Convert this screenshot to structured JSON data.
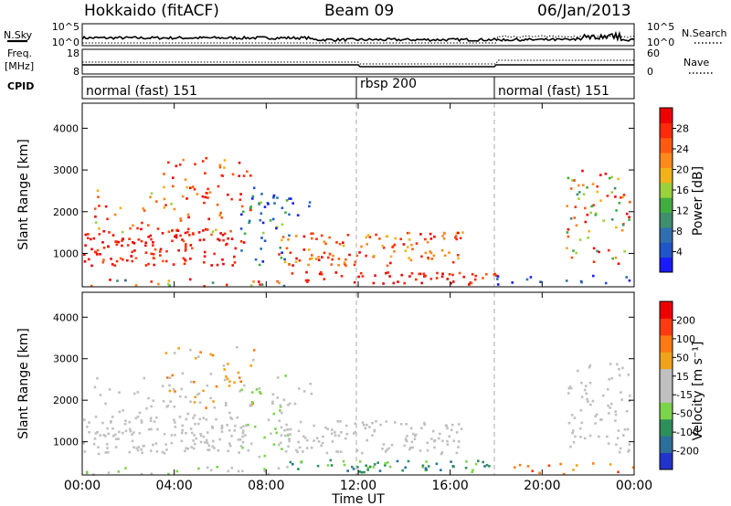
{
  "header": {
    "station": "Hokkaido (fitACF)",
    "beam": "Beam 09",
    "date": "06/Jan/2013"
  },
  "status_panels": {
    "nsky_label": "N.Sky",
    "nsky_ticks": [
      "10^5",
      "10^0"
    ],
    "nsearch_label": "N.Search",
    "nsearch_ticks": [
      "10^5",
      "10^0"
    ],
    "freq_label_line1": "Freq.",
    "freq_label_line2": "[MHz]",
    "freq_ticks": [
      "18",
      "8"
    ],
    "nave_label": "Nave",
    "nave_ticks": [
      "60",
      "0"
    ],
    "cpid_label": "CPID",
    "cpid_segments": [
      {
        "label": "normal (fast) 151",
        "start_h": 0,
        "end_h": 12
      },
      {
        "label": "rbsp 200",
        "start_h": 12,
        "end_h": 18
      },
      {
        "label": "normal (fast) 151",
        "start_h": 18,
        "end_h": 24
      }
    ]
  },
  "chart_data": [
    {
      "type": "heatmap",
      "name": "power",
      "ylabel": "Slant Range [km]",
      "yticks": [
        1000,
        2000,
        3000,
        4000
      ],
      "ylim": [
        200,
        4600
      ],
      "xlim": [
        0,
        24
      ],
      "colorbar": {
        "label": "Power [dB]",
        "ticks": [
          "4",
          "8",
          "12",
          "16",
          "20",
          "24",
          "28"
        ],
        "colors": [
          "#1a1aff",
          "#1f55c8",
          "#2f6fb0",
          "#3f8f6f",
          "#3fae3f",
          "#9ad23a",
          "#f2b21a",
          "#ff8a1a",
          "#ff5a10",
          "#ff2a0a",
          "#ee0000"
        ]
      }
    },
    {
      "type": "heatmap",
      "name": "velocity",
      "ylabel": "Slant Range [km]",
      "yticks": [
        1000,
        2000,
        3000,
        4000
      ],
      "ylim": [
        200,
        4600
      ],
      "xlim": [
        0,
        24
      ],
      "colorbar": {
        "label": "Velocity [m s⁻¹]",
        "ticks": [
          "200",
          "100",
          "50",
          "15",
          "-15",
          "-50",
          "-100",
          "-200"
        ],
        "colors": [
          "#2233cc",
          "#2b6f9a",
          "#2d8f5a",
          "#7cd44a",
          "#c0c0c0",
          "#c0c0c0",
          "#f0a31a",
          "#ff7a10",
          "#ff3a10",
          "#ee0000"
        ]
      }
    }
  ],
  "xaxis": {
    "ticks": [
      "00:00",
      "04:00",
      "08:00",
      "12:00",
      "16:00",
      "20:00",
      "00:00"
    ],
    "label": "Time UT"
  }
}
